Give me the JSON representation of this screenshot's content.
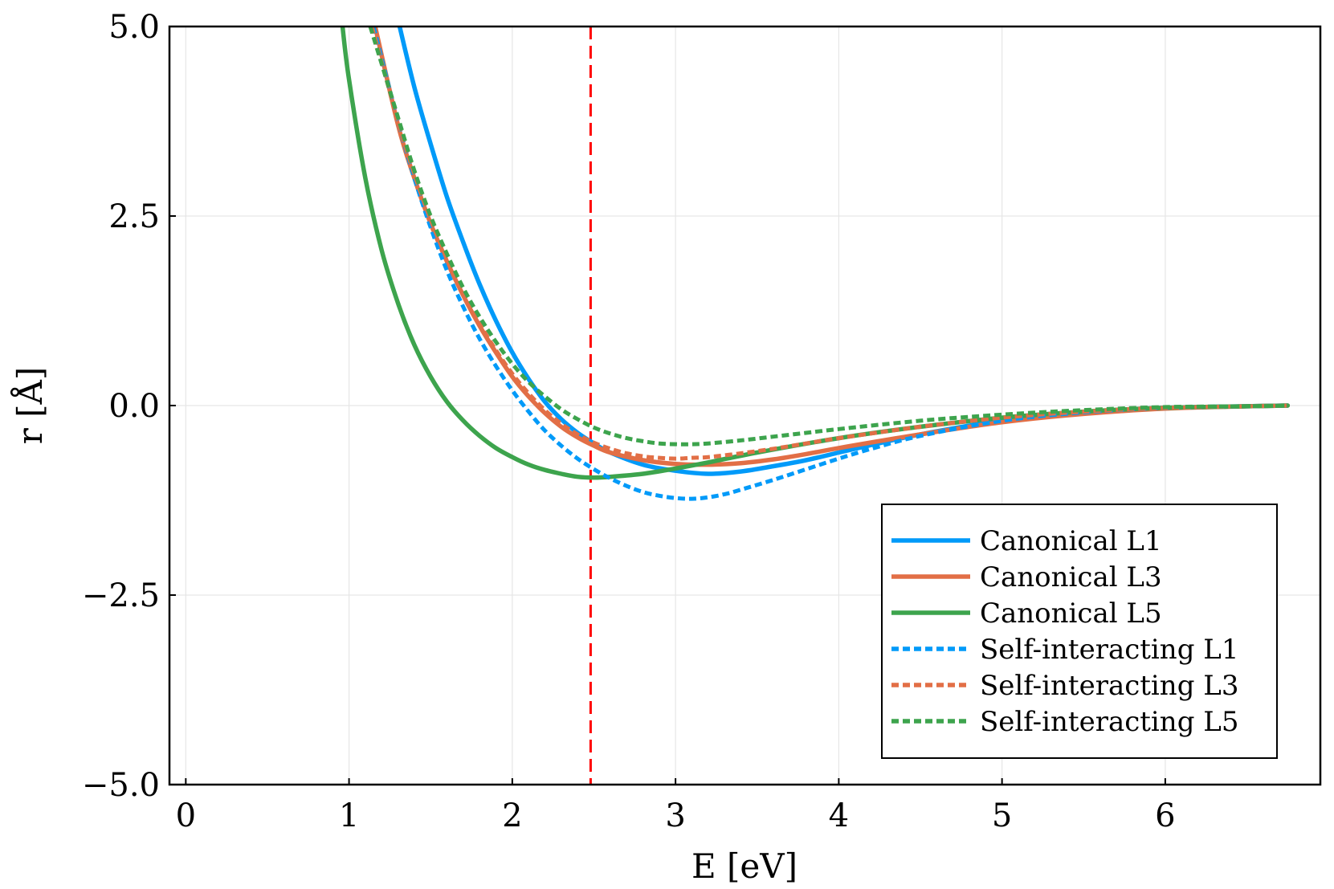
{
  "chart_data": {
    "type": "line",
    "title": "",
    "xlabel": "E [eV]",
    "ylabel": "r [Å]",
    "xlim": [
      -0.1,
      6.95
    ],
    "ylim": [
      -5.0,
      5.0
    ],
    "xticks": [
      0,
      1,
      2,
      3,
      4,
      5,
      6
    ],
    "xtick_labels": [
      "0",
      "1",
      "2",
      "3",
      "4",
      "5",
      "6"
    ],
    "yticks": [
      -5.0,
      -2.5,
      0.0,
      2.5,
      5.0
    ],
    "ytick_labels": [
      "−5.0",
      "−2.5",
      "0.0",
      "2.5",
      "5.0"
    ],
    "grid": true,
    "legend_position": "bottom-right",
    "vline": {
      "x": 2.48,
      "color": "#ff0000",
      "style": "dashed"
    },
    "series": [
      {
        "name": "Canonical L1",
        "color": "#009af9",
        "style": "solid",
        "points": [
          [
            1.31,
            5.0
          ],
          [
            1.4,
            4.2
          ],
          [
            1.5,
            3.45
          ],
          [
            1.6,
            2.75
          ],
          [
            1.7,
            2.15
          ],
          [
            1.8,
            1.6
          ],
          [
            1.9,
            1.12
          ],
          [
            2.0,
            0.7
          ],
          [
            2.1,
            0.35
          ],
          [
            2.2,
            0.05
          ],
          [
            2.3,
            -0.18
          ],
          [
            2.4,
            -0.36
          ],
          [
            2.5,
            -0.5
          ],
          [
            2.6,
            -0.62
          ],
          [
            2.8,
            -0.78
          ],
          [
            3.0,
            -0.86
          ],
          [
            3.2,
            -0.9
          ],
          [
            3.4,
            -0.87
          ],
          [
            3.6,
            -0.8
          ],
          [
            3.8,
            -0.72
          ],
          [
            4.0,
            -0.62
          ],
          [
            4.2,
            -0.52
          ],
          [
            4.5,
            -0.38
          ],
          [
            5.0,
            -0.2
          ],
          [
            5.5,
            -0.09
          ],
          [
            6.0,
            -0.03
          ],
          [
            6.5,
            -0.01
          ],
          [
            6.75,
            0.0
          ]
        ]
      },
      {
        "name": "Canonical L3",
        "color": "#e26f46",
        "style": "solid",
        "points": [
          [
            1.16,
            5.0
          ],
          [
            1.3,
            3.7
          ],
          [
            1.4,
            3.0
          ],
          [
            1.5,
            2.4
          ],
          [
            1.6,
            1.9
          ],
          [
            1.7,
            1.45
          ],
          [
            1.8,
            1.05
          ],
          [
            1.9,
            0.7
          ],
          [
            2.0,
            0.38
          ],
          [
            2.1,
            0.12
          ],
          [
            2.2,
            -0.1
          ],
          [
            2.3,
            -0.28
          ],
          [
            2.4,
            -0.42
          ],
          [
            2.5,
            -0.53
          ],
          [
            2.6,
            -0.62
          ],
          [
            2.8,
            -0.72
          ],
          [
            3.0,
            -0.77
          ],
          [
            3.2,
            -0.78
          ],
          [
            3.4,
            -0.76
          ],
          [
            3.6,
            -0.71
          ],
          [
            3.8,
            -0.64
          ],
          [
            4.0,
            -0.56
          ],
          [
            4.5,
            -0.38
          ],
          [
            5.0,
            -0.22
          ],
          [
            5.5,
            -0.11
          ],
          [
            6.0,
            -0.04
          ],
          [
            6.5,
            -0.01
          ],
          [
            6.75,
            0.0
          ]
        ]
      },
      {
        "name": "Canonical L5",
        "color": "#3da44d",
        "style": "solid",
        "points": [
          [
            0.96,
            5.0
          ],
          [
            1.0,
            4.3
          ],
          [
            1.1,
            3.0
          ],
          [
            1.2,
            2.05
          ],
          [
            1.3,
            1.35
          ],
          [
            1.4,
            0.8
          ],
          [
            1.5,
            0.38
          ],
          [
            1.6,
            0.05
          ],
          [
            1.7,
            -0.2
          ],
          [
            1.8,
            -0.4
          ],
          [
            1.9,
            -0.56
          ],
          [
            2.0,
            -0.68
          ],
          [
            2.1,
            -0.78
          ],
          [
            2.2,
            -0.85
          ],
          [
            2.3,
            -0.9
          ],
          [
            2.4,
            -0.94
          ],
          [
            2.5,
            -0.95
          ],
          [
            2.6,
            -0.94
          ],
          [
            2.8,
            -0.9
          ],
          [
            3.0,
            -0.83
          ],
          [
            3.2,
            -0.75
          ],
          [
            3.5,
            -0.62
          ],
          [
            4.0,
            -0.43
          ],
          [
            4.5,
            -0.28
          ],
          [
            5.0,
            -0.16
          ],
          [
            5.5,
            -0.08
          ],
          [
            6.0,
            -0.03
          ],
          [
            6.5,
            -0.01
          ],
          [
            6.75,
            0.0
          ]
        ]
      },
      {
        "name": "Self-interacting L1",
        "color": "#009af9",
        "style": "dotted",
        "points": [
          [
            1.15,
            5.0
          ],
          [
            1.3,
            3.75
          ],
          [
            1.4,
            3.0
          ],
          [
            1.5,
            2.35
          ],
          [
            1.6,
            1.78
          ],
          [
            1.7,
            1.3
          ],
          [
            1.8,
            0.88
          ],
          [
            1.9,
            0.52
          ],
          [
            2.0,
            0.2
          ],
          [
            2.1,
            -0.08
          ],
          [
            2.2,
            -0.33
          ],
          [
            2.3,
            -0.53
          ],
          [
            2.4,
            -0.7
          ],
          [
            2.5,
            -0.84
          ],
          [
            2.6,
            -0.96
          ],
          [
            2.7,
            -1.06
          ],
          [
            2.8,
            -1.14
          ],
          [
            2.9,
            -1.19
          ],
          [
            3.0,
            -1.22
          ],
          [
            3.1,
            -1.23
          ],
          [
            3.2,
            -1.21
          ],
          [
            3.3,
            -1.17
          ],
          [
            3.4,
            -1.11
          ],
          [
            3.6,
            -0.98
          ],
          [
            3.8,
            -0.84
          ],
          [
            4.0,
            -0.7
          ],
          [
            4.2,
            -0.57
          ],
          [
            4.5,
            -0.4
          ],
          [
            5.0,
            -0.2
          ],
          [
            5.5,
            -0.09
          ],
          [
            6.0,
            -0.03
          ],
          [
            6.5,
            -0.01
          ],
          [
            6.75,
            0.0
          ]
        ]
      },
      {
        "name": "Self-interacting L3",
        "color": "#e26f46",
        "style": "dotted",
        "points": [
          [
            1.14,
            5.0
          ],
          [
            1.3,
            3.75
          ],
          [
            1.4,
            3.05
          ],
          [
            1.5,
            2.45
          ],
          [
            1.6,
            1.93
          ],
          [
            1.7,
            1.48
          ],
          [
            1.8,
            1.08
          ],
          [
            1.9,
            0.73
          ],
          [
            2.0,
            0.42
          ],
          [
            2.1,
            0.16
          ],
          [
            2.2,
            -0.06
          ],
          [
            2.3,
            -0.24
          ],
          [
            2.4,
            -0.38
          ],
          [
            2.5,
            -0.49
          ],
          [
            2.6,
            -0.57
          ],
          [
            2.7,
            -0.63
          ],
          [
            2.8,
            -0.67
          ],
          [
            2.9,
            -0.69
          ],
          [
            3.0,
            -0.7
          ],
          [
            3.1,
            -0.69
          ],
          [
            3.2,
            -0.68
          ],
          [
            3.4,
            -0.63
          ],
          [
            3.6,
            -0.57
          ],
          [
            3.8,
            -0.5
          ],
          [
            4.0,
            -0.43
          ],
          [
            4.5,
            -0.28
          ],
          [
            5.0,
            -0.16
          ],
          [
            5.5,
            -0.08
          ],
          [
            6.0,
            -0.03
          ],
          [
            6.5,
            -0.01
          ],
          [
            6.75,
            0.0
          ]
        ]
      },
      {
        "name": "Self-interacting L5",
        "color": "#3da44d",
        "style": "dotted",
        "points": [
          [
            1.13,
            5.0
          ],
          [
            1.3,
            3.8
          ],
          [
            1.4,
            3.1
          ],
          [
            1.5,
            2.5
          ],
          [
            1.6,
            2.0
          ],
          [
            1.7,
            1.55
          ],
          [
            1.8,
            1.17
          ],
          [
            1.9,
            0.84
          ],
          [
            2.0,
            0.55
          ],
          [
            2.1,
            0.31
          ],
          [
            2.2,
            0.12
          ],
          [
            2.3,
            -0.05
          ],
          [
            2.4,
            -0.18
          ],
          [
            2.5,
            -0.29
          ],
          [
            2.6,
            -0.37
          ],
          [
            2.7,
            -0.43
          ],
          [
            2.8,
            -0.47
          ],
          [
            2.9,
            -0.5
          ],
          [
            3.0,
            -0.51
          ],
          [
            3.1,
            -0.51
          ],
          [
            3.2,
            -0.5
          ],
          [
            3.4,
            -0.46
          ],
          [
            3.6,
            -0.41
          ],
          [
            3.8,
            -0.36
          ],
          [
            4.0,
            -0.31
          ],
          [
            4.5,
            -0.2
          ],
          [
            5.0,
            -0.12
          ],
          [
            5.5,
            -0.06
          ],
          [
            6.0,
            -0.02
          ],
          [
            6.5,
            -0.01
          ],
          [
            6.75,
            0.0
          ]
        ]
      }
    ]
  }
}
